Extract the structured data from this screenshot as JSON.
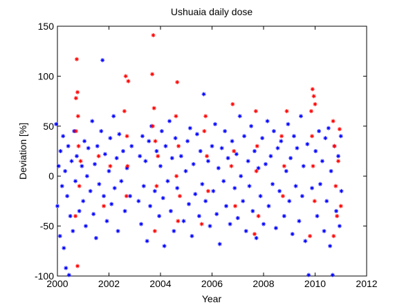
{
  "chart_data": {
    "type": "scatter",
    "title": "Ushuaia daily dose",
    "xlabel": "Year",
    "ylabel": "Deviation [%]",
    "xlim": [
      2000,
      2012
    ],
    "xticks": [
      2000,
      2002,
      2004,
      2006,
      2008,
      2010,
      2012
    ],
    "ylim": [
      -100,
      150
    ],
    "yticks": [
      -100,
      -50,
      0,
      50,
      100,
      150
    ],
    "marker": "asterisk",
    "series": [
      {
        "color": "#0000ff",
        "x": [
          1999.95,
          2000.0,
          2000.05,
          2000.1,
          2000.12,
          2000.18,
          2000.22,
          2000.25,
          2000.3,
          2000.33,
          2000.38,
          2000.42,
          2000.45,
          2000.5,
          2000.55,
          2000.6,
          2000.65,
          2000.7,
          2000.75,
          2000.85,
          2000.95,
          2001.0,
          2001.05,
          2001.1,
          2001.15,
          2001.2,
          2001.28,
          2001.35,
          2001.4,
          2001.45,
          2001.5,
          2001.55,
          2001.62,
          2001.7,
          2001.75,
          2001.8,
          2001.85,
          2001.92,
          2002.0,
          2002.05,
          2002.1,
          2002.18,
          2002.22,
          2002.3,
          2002.35,
          2002.4,
          2002.48,
          2002.55,
          2002.62,
          2002.7,
          2002.82,
          2002.88,
          2003.15,
          2003.2,
          2003.25,
          2003.3,
          2003.35,
          2003.42,
          2003.48,
          2003.55,
          2003.6,
          2003.65,
          2003.78,
          2003.85,
          2003.95,
          2004.0,
          2004.05,
          2004.1,
          2004.15,
          2004.2,
          2004.28,
          2004.35,
          2004.4,
          2004.45,
          2004.52,
          2004.58,
          2004.65,
          2004.8,
          2004.9,
          2004.98,
          2005.05,
          2005.1,
          2005.15,
          2005.22,
          2005.28,
          2005.35,
          2005.42,
          2005.5,
          2005.55,
          2005.62,
          2005.68,
          2005.75,
          2005.85,
          2005.92,
          2006.0,
          2006.05,
          2006.12,
          2006.18,
          2006.25,
          2006.3,
          2006.38,
          2006.45,
          2006.5,
          2006.55,
          2006.62,
          2006.7,
          2006.78,
          2006.88,
          2006.95,
          2007.0,
          2007.08,
          2007.12,
          2007.2,
          2007.25,
          2007.32,
          2007.4,
          2007.45,
          2007.52,
          2007.58,
          2007.65,
          2007.72,
          2007.8,
          2007.88,
          2007.95,
          2008.0,
          2008.08,
          2008.15,
          2008.2,
          2008.28,
          2008.35,
          2008.4,
          2008.48,
          2008.55,
          2008.62,
          2008.68,
          2008.8,
          2008.88,
          2008.95,
          2009.0,
          2009.05,
          2009.12,
          2009.18,
          2009.25,
          2009.3,
          2009.38,
          2009.45,
          2009.5,
          2009.55,
          2009.62,
          2009.7,
          2009.75,
          2009.88,
          2010.02,
          2010.08,
          2010.15,
          2010.2,
          2010.28,
          2010.35,
          2010.4,
          2010.45,
          2010.52,
          2010.58,
          2010.62,
          2010.68,
          2010.75,
          2010.82,
          2010.9,
          2010.95,
          2011.0,
          2011.02
        ],
        "values": [
          52,
          -30,
          10,
          -60,
          25,
          -10,
          40,
          -72,
          5,
          -92,
          -20,
          30,
          -99,
          -40,
          15,
          -55,
          45,
          -5,
          20,
          -35,
          10,
          -25,
          35,
          -50,
          0,
          28,
          -15,
          55,
          -38,
          12,
          -62,
          30,
          -8,
          45,
          116,
          -20,
          22,
          -45,
          5,
          38,
          -28,
          60,
          -12,
          18,
          -55,
          42,
          -5,
          25,
          -35,
          8,
          -20,
          30,
          -25,
          20,
          -48,
          40,
          -10,
          15,
          -65,
          35,
          -30,
          50,
          -15,
          25,
          -40,
          10,
          45,
          -22,
          -70,
          30,
          -5,
          55,
          -35,
          18,
          -55,
          38,
          -12,
          20,
          -45,
          5,
          35,
          -28,
          48,
          -60,
          12,
          -18,
          42,
          -40,
          25,
          -8,
          82,
          -25,
          15,
          -50,
          30,
          -15,
          52,
          -38,
          8,
          -68,
          28,
          -5,
          45,
          -30,
          18,
          -48,
          35,
          -12,
          22,
          -42,
          60,
          0,
          -25,
          40,
          -55,
          15,
          -10,
          50,
          -35,
          25,
          -62,
          8,
          -20,
          38,
          -48,
          12,
          55,
          -30,
          20,
          -8,
          45,
          -52,
          28,
          -15,
          35,
          -40,
          5,
          52,
          -25,
          18,
          -58,
          40,
          -10,
          28,
          -45,
          60,
          -20,
          10,
          -65,
          32,
          -99,
          -12,
          25,
          -40,
          45,
          -8,
          15,
          -55,
          38,
          -25,
          48,
          -70,
          5,
          -99,
          30,
          -35,
          20,
          -50,
          40,
          -15
        ]
      },
      {
        "color": "#ff0000",
        "x": [
          2000.72,
          2000.75,
          2000.78,
          2000.8,
          2000.82,
          2000.85,
          2000.7,
          2000.78,
          2000.9,
          2000.72,
          2001.6,
          2001.8,
          2002.05,
          2002.6,
          2002.65,
          2002.7,
          2002.75,
          2002.68,
          2002.72,
          2003.68,
          2003.72,
          2003.75,
          2003.8,
          2003.85,
          2003.78,
          2003.9,
          2003.7,
          2004.6,
          2004.65,
          2004.7,
          2004.75,
          2004.62,
          2004.68,
          2005.7,
          2005.8,
          2005.85,
          2005.75,
          2005.6,
          2006.8,
          2006.85,
          2006.9,
          2006.75,
          2007.7,
          2007.75,
          2007.8,
          2007.65,
          2007.72,
          2008.7,
          2008.75,
          2008.9,
          2008.8,
          2009.85,
          2009.9,
          2009.95,
          2010.0,
          2009.88,
          2009.92,
          2009.98,
          2009.8,
          2010.7,
          2010.75,
          2010.8,
          2010.85,
          2010.9,
          2010.95,
          2011.0,
          2010.72
        ],
        "values": [
          78,
          117,
          84,
          60,
          30,
          -10,
          -40,
          -90,
          15,
          45,
          20,
          -30,
          10,
          65,
          100,
          40,
          95,
          -20,
          10,
          102,
          141,
          68,
          35,
          -10,
          -55,
          20,
          50,
          60,
          94,
          30,
          -20,
          0,
          -45,
          45,
          20,
          -15,
          60,
          -48,
          72,
          25,
          -30,
          10,
          65,
          30,
          -40,
          -58,
          5,
          40,
          -20,
          65,
          10,
          65,
          87,
          80,
          72,
          40,
          10,
          -25,
          -60,
          55,
          30,
          -10,
          -40,
          15,
          47,
          -30,
          -60
        ]
      }
    ]
  }
}
